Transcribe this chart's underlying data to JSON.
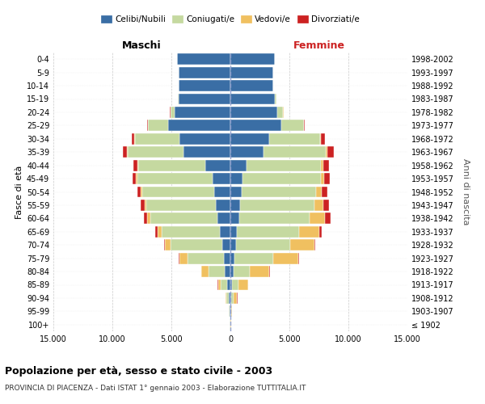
{
  "age_groups": [
    "100+",
    "95-99",
    "90-94",
    "85-89",
    "80-84",
    "75-79",
    "70-74",
    "65-69",
    "60-64",
    "55-59",
    "50-54",
    "45-49",
    "40-44",
    "35-39",
    "30-34",
    "25-29",
    "20-24",
    "15-19",
    "10-14",
    "5-9",
    "0-4"
  ],
  "birth_years": [
    "≤ 1902",
    "1903-1907",
    "1908-1912",
    "1913-1917",
    "1918-1922",
    "1923-1927",
    "1928-1932",
    "1933-1937",
    "1938-1942",
    "1943-1947",
    "1948-1952",
    "1953-1957",
    "1958-1962",
    "1963-1967",
    "1968-1972",
    "1973-1977",
    "1978-1982",
    "1983-1987",
    "1988-1992",
    "1993-1997",
    "1998-2002"
  ],
  "colors": {
    "celibi": "#3a6ea5",
    "coniugati": "#c5d9a0",
    "vedovi": "#f0c060",
    "divorziati": "#cc2222"
  },
  "males": {
    "celibi": [
      30,
      80,
      130,
      250,
      450,
      550,
      700,
      900,
      1100,
      1200,
      1350,
      1500,
      2100,
      4000,
      4300,
      5300,
      4700,
      4400,
      4350,
      4350,
      4500
    ],
    "coniugati": [
      15,
      50,
      180,
      550,
      1400,
      3100,
      4400,
      4900,
      5700,
      5900,
      6100,
      6400,
      5700,
      4700,
      3800,
      1700,
      380,
      45,
      8,
      0,
      0
    ],
    "vedovi": [
      5,
      20,
      80,
      250,
      600,
      650,
      450,
      380,
      230,
      180,
      130,
      90,
      70,
      45,
      25,
      15,
      8,
      0,
      0,
      0,
      0
    ],
    "divorziati": [
      2,
      8,
      15,
      25,
      25,
      70,
      90,
      180,
      280,
      330,
      330,
      280,
      330,
      380,
      230,
      45,
      15,
      4,
      0,
      0,
      0
    ]
  },
  "females": {
    "celibi": [
      25,
      55,
      90,
      170,
      260,
      350,
      450,
      550,
      750,
      850,
      950,
      1050,
      1400,
      2800,
      3300,
      4300,
      4000,
      3800,
      3600,
      3600,
      3800
    ],
    "coniugati": [
      8,
      35,
      170,
      520,
      1350,
      3300,
      4600,
      5300,
      5950,
      6300,
      6300,
      6600,
      6300,
      5300,
      4300,
      1900,
      480,
      75,
      8,
      0,
      0
    ],
    "vedovi": [
      18,
      70,
      320,
      830,
      1700,
      2100,
      2100,
      1700,
      1300,
      750,
      470,
      280,
      180,
      90,
      55,
      18,
      8,
      4,
      0,
      0,
      0
    ],
    "divorziati": [
      1,
      4,
      8,
      18,
      25,
      45,
      70,
      180,
      470,
      470,
      470,
      470,
      470,
      560,
      370,
      90,
      25,
      8,
      0,
      0,
      0
    ]
  },
  "title": "Popolazione per età, sesso e stato civile - 2003",
  "subtitle": "PROVINCIA DI PIACENZA - Dati ISTAT 1° gennaio 2003 - Elaborazione TUTTITALIA.IT",
  "label_maschi": "Maschi",
  "label_femmine": "Femmine",
  "ylabel_left": "Fasce di età",
  "ylabel_right": "Anni di nascita",
  "xlim": 15000,
  "legend_labels": [
    "Celibi/Nubili",
    "Coniugati/e",
    "Vedovi/e",
    "Divorziati/e"
  ]
}
